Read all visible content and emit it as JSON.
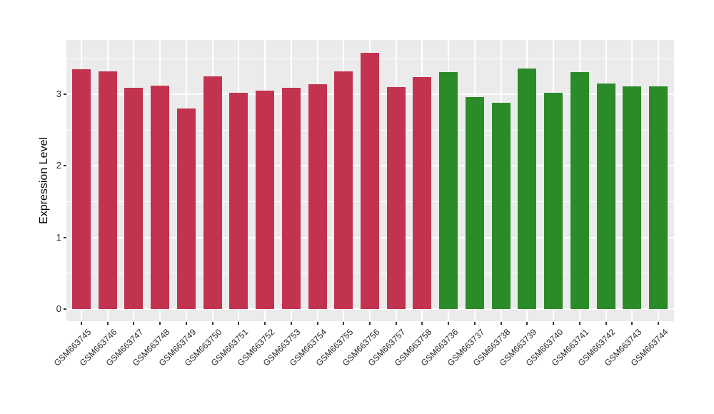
{
  "chart_data": {
    "type": "bar",
    "title": "",
    "xlabel": "",
    "ylabel": "Expression Level",
    "categories": [
      "GSM663745",
      "GSM663746",
      "GSM663747",
      "GSM663748",
      "GSM663749",
      "GSM663750",
      "GSM663751",
      "GSM663752",
      "GSM663753",
      "GSM663754",
      "GSM663755",
      "GSM663756",
      "GSM663757",
      "GSM663758",
      "GSM663736",
      "GSM663737",
      "GSM663738",
      "GSM663739",
      "GSM663740",
      "GSM663741",
      "GSM663742",
      "GSM663743",
      "GSM663744"
    ],
    "values": [
      3.35,
      3.32,
      3.09,
      3.12,
      2.8,
      3.25,
      3.02,
      3.05,
      3.09,
      3.14,
      3.32,
      3.58,
      3.1,
      3.24,
      3.31,
      2.96,
      2.88,
      3.36,
      3.02,
      3.31,
      3.15,
      3.11,
      3.11
    ],
    "bar_group_index": [
      0,
      0,
      0,
      0,
      0,
      0,
      0,
      0,
      0,
      0,
      0,
      0,
      0,
      0,
      1,
      1,
      1,
      1,
      1,
      1,
      1,
      1,
      1
    ],
    "group_colors": [
      "#C23350",
      "#2A8B28"
    ],
    "yticks": [
      0,
      1,
      2,
      3
    ],
    "minor_gridlines": [
      0.5,
      1.5,
      2.5,
      3.5
    ],
    "ylim": [
      -0.17,
      3.76
    ],
    "x_label_angle": -45,
    "grid": true,
    "legend": "none",
    "panel_bg": "#EBEBEB",
    "grid_color": "#FFFFFF",
    "axis_text_color": "#262626"
  }
}
